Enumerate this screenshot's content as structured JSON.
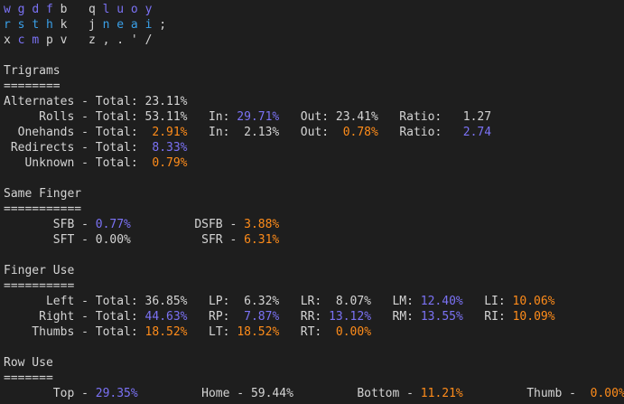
{
  "rows": [
    [
      {
        "t": "w",
        "c": "purple"
      },
      {
        "t": " "
      },
      {
        "t": "g",
        "c": "purple"
      },
      {
        "t": " "
      },
      {
        "t": "d",
        "c": "purple"
      },
      {
        "t": " "
      },
      {
        "t": "f",
        "c": "purple"
      },
      {
        "t": " "
      },
      {
        "t": "b",
        "c": "white"
      },
      {
        "t": "   "
      },
      {
        "t": "q",
        "c": "white"
      },
      {
        "t": " "
      },
      {
        "t": "l",
        "c": "purple"
      },
      {
        "t": " "
      },
      {
        "t": "u",
        "c": "purple"
      },
      {
        "t": " "
      },
      {
        "t": "o",
        "c": "purple"
      },
      {
        "t": " "
      },
      {
        "t": "y",
        "c": "purple"
      }
    ],
    [
      {
        "t": "r",
        "c": "blue"
      },
      {
        "t": " "
      },
      {
        "t": "s",
        "c": "blue"
      },
      {
        "t": " "
      },
      {
        "t": "t",
        "c": "blue"
      },
      {
        "t": " "
      },
      {
        "t": "h",
        "c": "blue"
      },
      {
        "t": " "
      },
      {
        "t": "k",
        "c": "white"
      },
      {
        "t": "   "
      },
      {
        "t": "j",
        "c": "white"
      },
      {
        "t": " "
      },
      {
        "t": "n",
        "c": "blue"
      },
      {
        "t": " "
      },
      {
        "t": "e",
        "c": "blue"
      },
      {
        "t": " "
      },
      {
        "t": "a",
        "c": "blue"
      },
      {
        "t": " "
      },
      {
        "t": "i",
        "c": "blue"
      },
      {
        "t": " "
      },
      {
        "t": ";",
        "c": "white"
      }
    ],
    [
      {
        "t": "x",
        "c": "white"
      },
      {
        "t": " "
      },
      {
        "t": "c",
        "c": "purple"
      },
      {
        "t": " "
      },
      {
        "t": "m",
        "c": "purple"
      },
      {
        "t": " "
      },
      {
        "t": "p",
        "c": "white"
      },
      {
        "t": " "
      },
      {
        "t": "v",
        "c": "white"
      },
      {
        "t": "   "
      },
      {
        "t": "z",
        "c": "white"
      },
      {
        "t": " "
      },
      {
        "t": ",",
        "c": "white"
      },
      {
        "t": " "
      },
      {
        "t": ".",
        "c": "white"
      },
      {
        "t": " "
      },
      {
        "t": "'",
        "c": "white"
      },
      {
        "t": " "
      },
      {
        "t": "/",
        "c": "white"
      }
    ],
    [],
    [
      {
        "t": "Trigrams"
      }
    ],
    [
      {
        "t": "========"
      }
    ],
    [
      {
        "t": "Alternates - Total: 23.11%"
      }
    ],
    [
      {
        "t": "     Rolls - Total: 53.11%   In: "
      },
      {
        "t": "29.71%",
        "c": "purple"
      },
      {
        "t": "   Out: 23.41%   Ratio:   1.27"
      }
    ],
    [
      {
        "t": "  Onehands - Total:  "
      },
      {
        "t": "2.91%",
        "c": "orange"
      },
      {
        "t": "   In:  2.13%   Out:  "
      },
      {
        "t": "0.78%",
        "c": "orange"
      },
      {
        "t": "   Ratio:   "
      },
      {
        "t": "2.74",
        "c": "purple"
      }
    ],
    [
      {
        "t": " Redirects - Total:  "
      },
      {
        "t": "8.33%",
        "c": "purple"
      }
    ],
    [
      {
        "t": "   Unknown - Total:  "
      },
      {
        "t": "0.79%",
        "c": "orange"
      }
    ],
    [],
    [
      {
        "t": "Same Finger"
      }
    ],
    [
      {
        "t": "==========="
      }
    ],
    [
      {
        "t": "       SFB - "
      },
      {
        "t": "0.77%",
        "c": "purple"
      },
      {
        "t": "         DSFB - "
      },
      {
        "t": "3.88%",
        "c": "orange"
      }
    ],
    [
      {
        "t": "       SFT - 0.00%          SFR - "
      },
      {
        "t": "6.31%",
        "c": "orange"
      }
    ],
    [],
    [
      {
        "t": "Finger Use"
      }
    ],
    [
      {
        "t": "=========="
      }
    ],
    [
      {
        "t": "      Left - Total: 36.85%   LP:  6.32%   LR:  8.07%   LM: "
      },
      {
        "t": "12.40%",
        "c": "purple"
      },
      {
        "t": "   LI: "
      },
      {
        "t": "10.06%",
        "c": "orange"
      }
    ],
    [
      {
        "t": "     Right - Total: "
      },
      {
        "t": "44.63%",
        "c": "purple"
      },
      {
        "t": "   RP:  "
      },
      {
        "t": "7.87%",
        "c": "purple"
      },
      {
        "t": "   RR: "
      },
      {
        "t": "13.12%",
        "c": "purple"
      },
      {
        "t": "   RM: "
      },
      {
        "t": "13.55%",
        "c": "purple"
      },
      {
        "t": "   RI: "
      },
      {
        "t": "10.09%",
        "c": "orange"
      }
    ],
    [
      {
        "t": "    Thumbs - Total: "
      },
      {
        "t": "18.52%",
        "c": "orange"
      },
      {
        "t": "   LT: "
      },
      {
        "t": "18.52%",
        "c": "orange"
      },
      {
        "t": "   RT:  "
      },
      {
        "t": "0.00%",
        "c": "orange"
      }
    ],
    [],
    [
      {
        "t": "Row Use"
      }
    ],
    [
      {
        "t": "======="
      }
    ],
    [
      {
        "t": "       Top - "
      },
      {
        "t": "29.35%",
        "c": "purple"
      },
      {
        "t": "         Home - 59.44%         Bottom - "
      },
      {
        "t": "11.21%",
        "c": "orange"
      },
      {
        "t": "         Thumb -  "
      },
      {
        "t": "0.00%",
        "c": "orange"
      }
    ]
  ]
}
